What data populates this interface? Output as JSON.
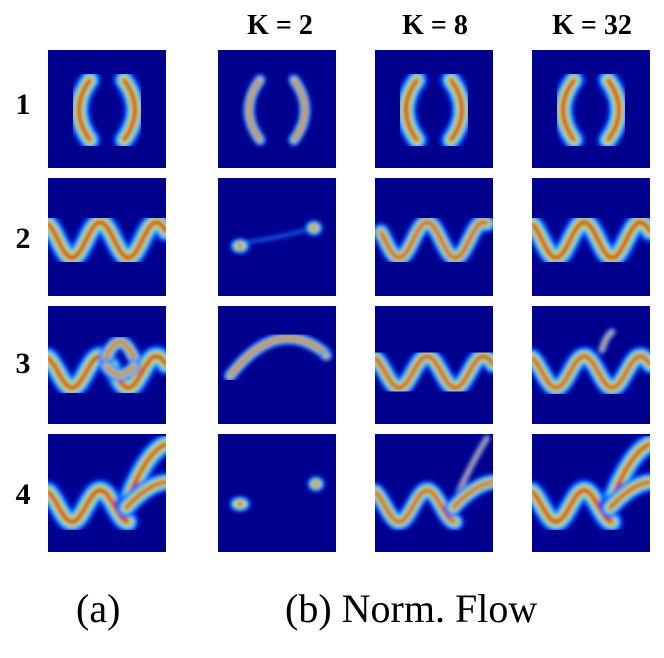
{
  "columns": [
    {
      "id": "a",
      "label": ""
    },
    {
      "id": "k2",
      "label": "K = 2"
    },
    {
      "id": "k8",
      "label": "K = 8"
    },
    {
      "id": "k32",
      "label": "K = 32"
    }
  ],
  "rows": [
    {
      "label": "1"
    },
    {
      "label": "2"
    },
    {
      "label": "3"
    },
    {
      "label": "4"
    }
  ],
  "captions": {
    "a": "(a)",
    "b": "(b) Norm. Flow"
  },
  "colors": {
    "background": "#00008f",
    "low": "#00bfff",
    "mid": "#b6ff50",
    "high": "#ff6a00",
    "peak": "#b00000"
  },
  "densities": [
    [
      "arcs",
      "arcs-k2",
      "arcs",
      "arcs"
    ],
    [
      "sine",
      "sine-k2",
      "sine-k8",
      "sine"
    ],
    [
      "sine-bump",
      "curve-k2",
      "sine-bump-k8",
      "sine-bump-k32"
    ],
    [
      "sine-split",
      "blobs-k2",
      "sine-split-k8",
      "sine-split"
    ]
  ]
}
